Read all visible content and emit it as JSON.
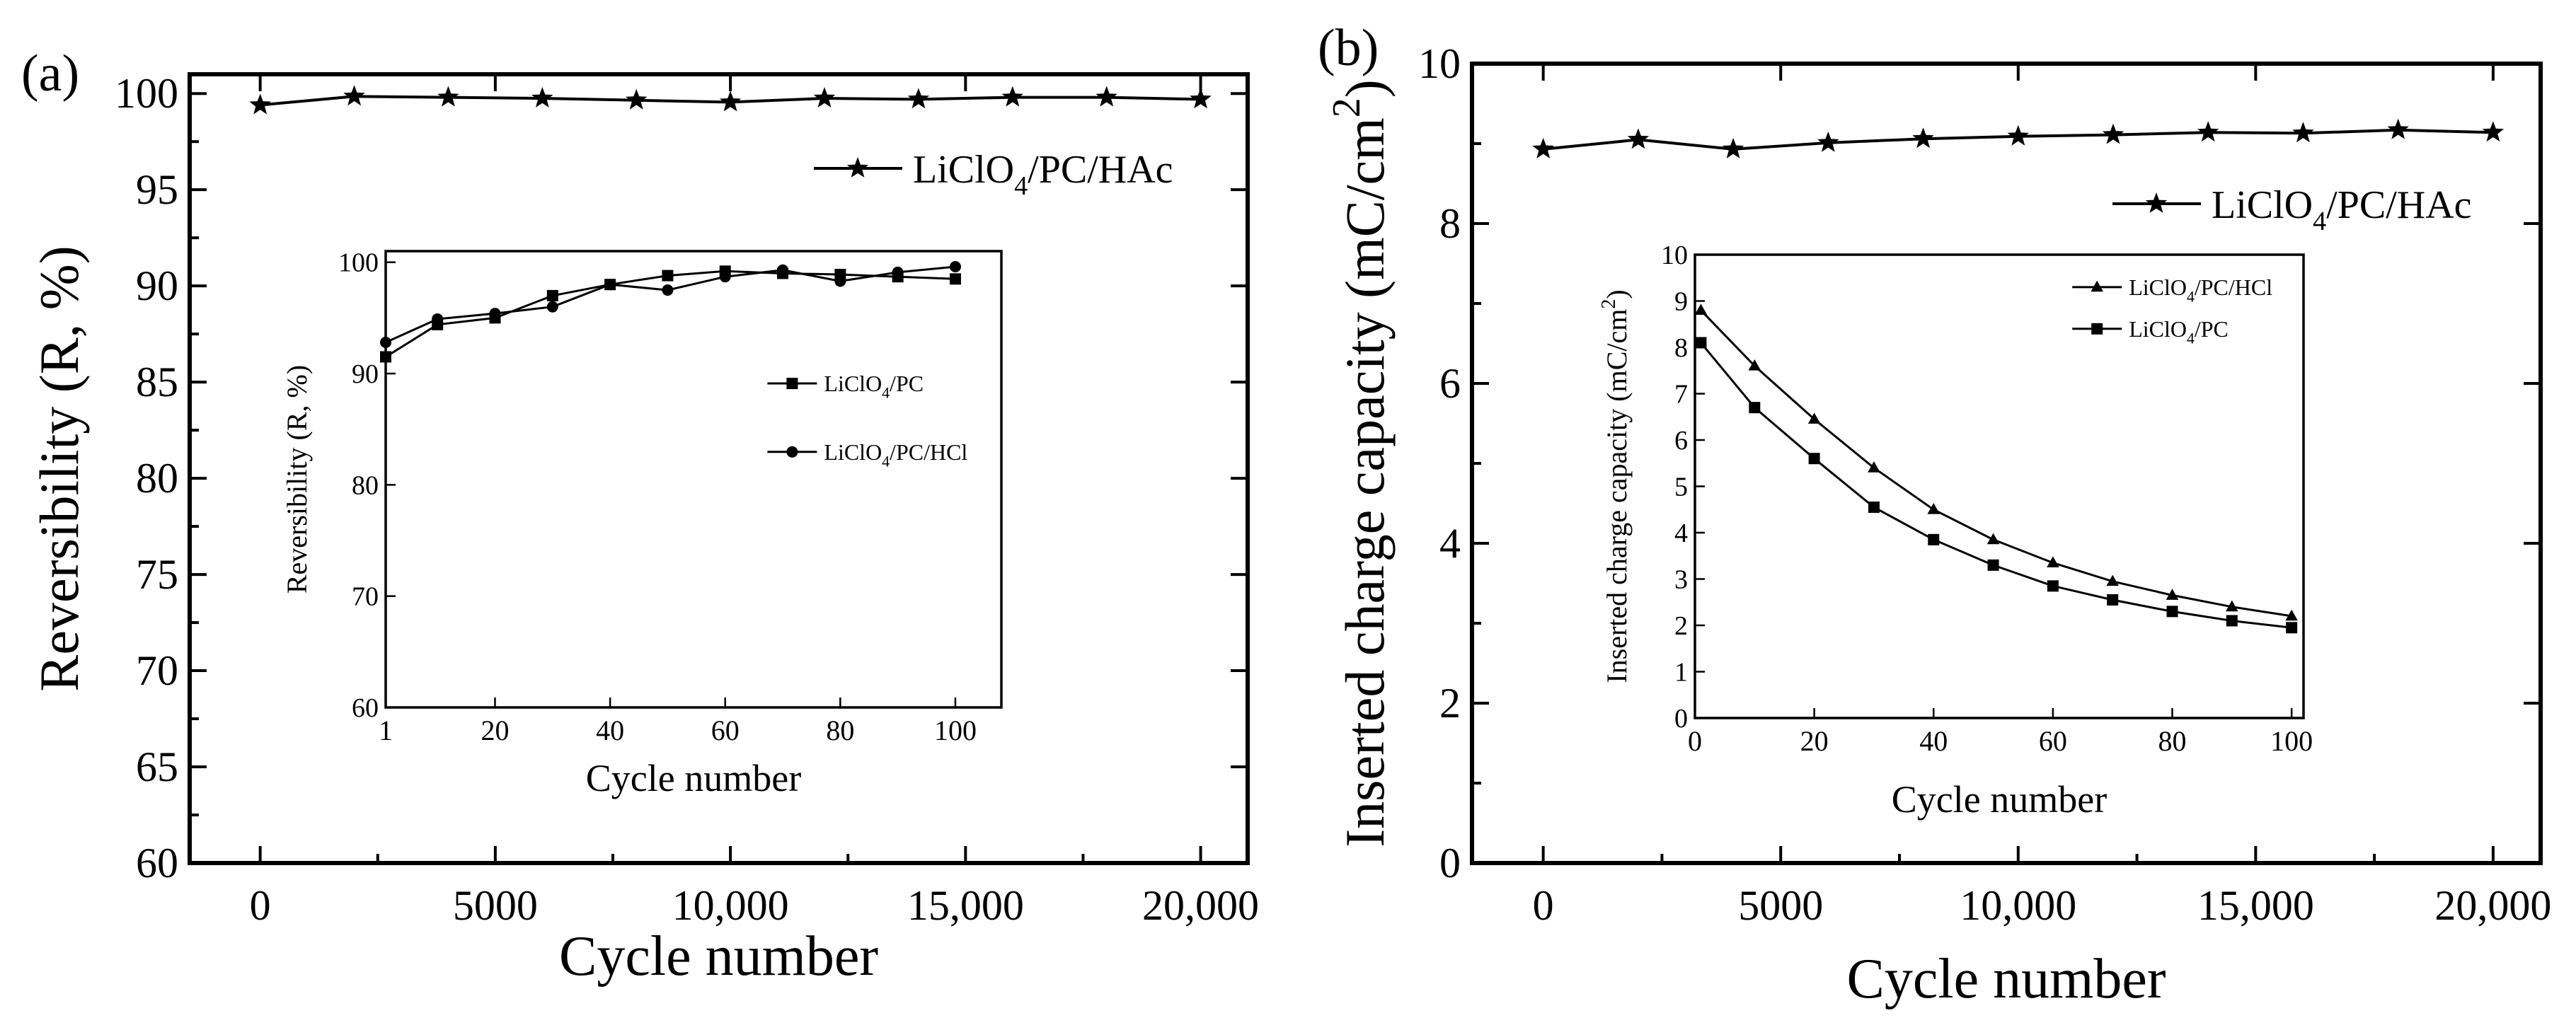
{
  "chart_data": [
    {
      "type": "line",
      "panel_label": "(a)",
      "xlabel": "Cycle number",
      "ylabel": "Reversibility (R, %)",
      "xlim": [
        -1500,
        21000
      ],
      "ylim": [
        60,
        101
      ],
      "x_ticks": [
        0,
        5000,
        10000,
        15000,
        20000
      ],
      "x_tick_labels": [
        "0",
        "5000",
        "10,000",
        "15,000",
        "20,000"
      ],
      "y_ticks": [
        60,
        65,
        70,
        75,
        80,
        85,
        90,
        95,
        100
      ],
      "y_tick_labels": [
        "60",
        "65",
        "70",
        "75",
        "80",
        "85",
        "90",
        "95",
        "100"
      ],
      "legend_position": "top-right",
      "series": [
        {
          "name": "LiClO4/PC/HAc",
          "legend_main": "LiClO",
          "legend_sub": "4",
          "legend_rest": "/PC/HAc",
          "marker": "star",
          "x": [
            0,
            2000,
            4000,
            6000,
            8000,
            10000,
            12000,
            14000,
            16000,
            18000,
            20000
          ],
          "values": [
            99.4,
            99.85,
            99.8,
            99.75,
            99.65,
            99.55,
            99.75,
            99.7,
            99.8,
            99.8,
            99.7
          ]
        }
      ],
      "inset": {
        "type": "line",
        "xlabel": "Cycle number",
        "ylabel": "Reversibility (R, %)",
        "xlim": [
          1,
          108
        ],
        "ylim": [
          60,
          101
        ],
        "x_ticks": [
          1,
          20,
          40,
          60,
          80,
          100
        ],
        "x_tick_labels": [
          "1",
          "20",
          "40",
          "60",
          "80",
          "100"
        ],
        "y_ticks": [
          60,
          70,
          80,
          90,
          100
        ],
        "y_tick_labels": [
          "60",
          "70",
          "80",
          "90",
          "100"
        ],
        "legend_position": "right",
        "series": [
          {
            "name": "LiClO4/PC",
            "legend_main": "LiClO",
            "legend_sub": "4",
            "legend_rest": "/PC",
            "marker": "square",
            "x": [
              1,
              10,
              20,
              30,
              40,
              50,
              60,
              70,
              80,
              90,
              100
            ],
            "values": [
              91.5,
              94.4,
              95.0,
              97.0,
              98.0,
              98.8,
              99.2,
              99.0,
              98.9,
              98.7,
              98.5
            ]
          },
          {
            "name": "LiClO4/PC/HCl",
            "legend_main": "LiClO",
            "legend_sub": "4",
            "legend_rest": "/PC/HCl",
            "marker": "circle",
            "x": [
              1,
              10,
              20,
              30,
              40,
              50,
              60,
              70,
              80,
              90,
              100
            ],
            "values": [
              92.8,
              94.9,
              95.4,
              96.0,
              98.0,
              97.5,
              98.7,
              99.3,
              98.3,
              99.1,
              99.6
            ]
          }
        ]
      }
    },
    {
      "type": "line",
      "panel_label": "(b)",
      "xlabel": "Cycle number",
      "ylabel": "Inserted charge capacity (mC/cm",
      "ylabel_sup": "2",
      "ylabel_end": ")",
      "xlim": [
        -1500,
        21000
      ],
      "ylim": [
        0,
        10
      ],
      "x_ticks": [
        0,
        5000,
        10000,
        15000,
        20000
      ],
      "x_tick_labels": [
        "0",
        "5000",
        "10,000",
        "15,000",
        "20,000"
      ],
      "y_ticks": [
        0,
        2,
        4,
        6,
        8,
        10
      ],
      "y_tick_labels": [
        "0",
        "2",
        "4",
        "6",
        "8",
        "10"
      ],
      "legend_position": "top-right",
      "series": [
        {
          "name": "LiClO4/PC/HAc",
          "legend_main": "LiClO",
          "legend_sub": "4",
          "legend_rest": "/PC/HAc",
          "marker": "star",
          "x": [
            0,
            2000,
            4000,
            6000,
            8000,
            10000,
            12000,
            14000,
            16000,
            18000,
            20000
          ],
          "values": [
            8.93,
            9.05,
            8.93,
            9.01,
            9.06,
            9.09,
            9.11,
            9.14,
            9.13,
            9.17,
            9.14
          ]
        }
      ],
      "inset": {
        "type": "line",
        "xlabel": "Cycle number",
        "ylabel": "Inserted charge capacity (mC/cm",
        "ylabel_sup": "2",
        "ylabel_end": ")",
        "xlim": [
          0,
          102
        ],
        "ylim": [
          0,
          10
        ],
        "x_ticks": [
          0,
          20,
          40,
          60,
          80,
          100
        ],
        "x_tick_labels": [
          "0",
          "20",
          "40",
          "60",
          "80",
          "100"
        ],
        "y_ticks": [
          0,
          1,
          2,
          3,
          4,
          5,
          6,
          7,
          8,
          9,
          10
        ],
        "y_tick_labels": [
          "0",
          "1",
          "2",
          "3",
          "4",
          "5",
          "6",
          "7",
          "8",
          "9",
          "10"
        ],
        "legend_position": "top-right",
        "series": [
          {
            "name": "LiClO4/PC/HCl",
            "legend_main": "LiClO",
            "legend_sub": "4",
            "legend_rest": "/PC/HCl",
            "marker": "triangle",
            "x": [
              1,
              10,
              20,
              30,
              40,
              50,
              60,
              70,
              80,
              90,
              100
            ],
            "values": [
              8.8,
              7.6,
              6.45,
              5.4,
              4.5,
              3.85,
              3.35,
              2.95,
              2.65,
              2.4,
              2.2
            ]
          },
          {
            "name": "LiClO4/PC",
            "legend_main": "LiClO",
            "legend_sub": "4",
            "legend_rest": "/PC",
            "marker": "square",
            "x": [
              1,
              10,
              20,
              30,
              40,
              50,
              60,
              70,
              80,
              90,
              100
            ],
            "values": [
              8.1,
              6.7,
              5.6,
              4.55,
              3.85,
              3.3,
              2.85,
              2.55,
              2.3,
              2.1,
              1.95
            ]
          }
        ]
      }
    }
  ]
}
